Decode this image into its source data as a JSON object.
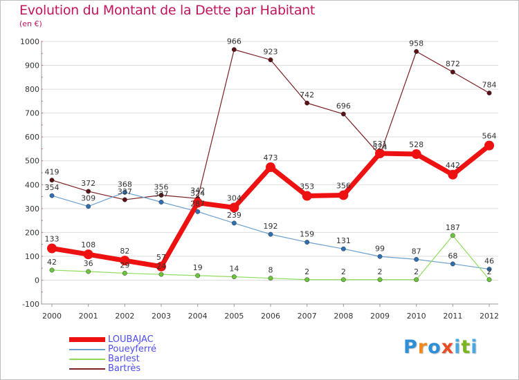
{
  "title": "Evolution du Montant de la Dette par Habitant",
  "subtitle": "(en €)",
  "brand": {
    "text": "Proxiti",
    "colors": [
      "#2d8fd6",
      "#f08a1c",
      "#2d8fd6",
      "#e94d26",
      "#4aa8e0",
      "#7ab51d",
      "#4aa8e0"
    ]
  },
  "colors": {
    "title": "#c0145c",
    "axis_text": "#333333",
    "legend_text": "#4d4df0",
    "grid": "#dddddd"
  },
  "chart_data": {
    "type": "line",
    "x": [
      "2000",
      "2001",
      "2002",
      "2003",
      "2004",
      "2005",
      "2006",
      "2007",
      "2008",
      "2009",
      "2010",
      "2011",
      "2012"
    ],
    "ylim": [
      -100,
      1000
    ],
    "yticks": [
      -100,
      0,
      100,
      200,
      300,
      400,
      500,
      600,
      700,
      800,
      900,
      1000
    ],
    "grid": "horizontal",
    "legend_position": "bottom-left",
    "series": [
      {
        "name": "Bartrès",
        "color": "#7a1f24",
        "point_color": "#5a1015",
        "width": 1.2,
        "marker": 3.2,
        "values": [
          419,
          372,
          337,
          356,
          342,
          966,
          923,
          742,
          696,
          524,
          958,
          872,
          784
        ]
      },
      {
        "name": "Poueyferré",
        "color": "#6a9fd0",
        "point_color": "#2d6fb0",
        "width": 1.2,
        "marker": 3.2,
        "values": [
          354,
          309,
          368,
          327,
          287,
          239,
          192,
          159,
          131,
          99,
          87,
          68,
          46
        ]
      },
      {
        "name": "Barlest",
        "color": "#8fdc5c",
        "point_color": "#6cc43a",
        "width": 1.2,
        "marker": 3.2,
        "values": [
          42,
          36,
          29,
          24,
          19,
          14,
          8,
          2,
          2,
          2,
          2,
          187,
          2
        ]
      },
      {
        "name": "LOUBAJAC",
        "color": "#ee1111",
        "point_color": "#ee1111",
        "width": 7,
        "marker": 7,
        "values": [
          133,
          108,
          82,
          57,
          324,
          304,
          473,
          353,
          356,
          531,
          528,
          442,
          564
        ]
      }
    ],
    "legend": [
      "LOUBAJAC",
      "Poueyferré",
      "Barlest",
      "Bartrès"
    ]
  }
}
